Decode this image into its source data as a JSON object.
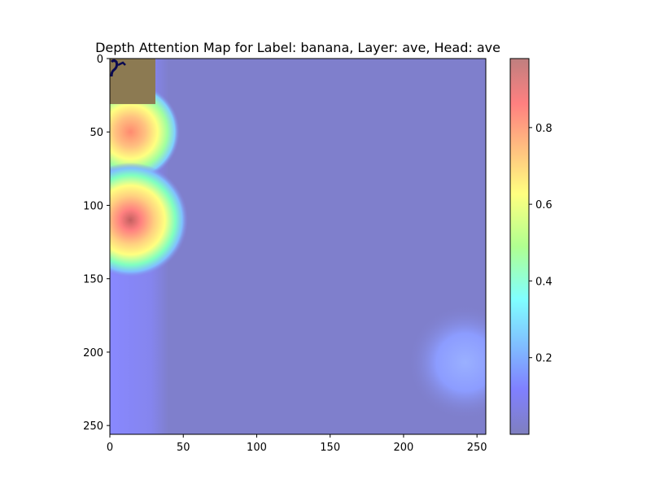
{
  "chart_data": {
    "type": "heatmap",
    "title": "Depth Attention Map for Label: banana, Layer: ave, Head: ave",
    "xlabel": "",
    "ylabel": "",
    "xlim": [
      0,
      256
    ],
    "ylim": [
      256,
      0
    ],
    "x_ticks": [
      0,
      50,
      100,
      150,
      200,
      250
    ],
    "y_ticks": [
      0,
      50,
      100,
      150,
      200,
      250
    ],
    "colorbar": {
      "range": [
        0.0,
        0.98
      ],
      "ticks": [
        0.2,
        0.4,
        0.6,
        0.8
      ],
      "tick_labels": [
        "0.2",
        "0.4",
        "0.6",
        "0.8"
      ],
      "colormap": "jet",
      "alpha": 0.5
    },
    "hotspots": [
      {
        "x": 14,
        "y": 50,
        "value": 0.82,
        "sigma": 12
      },
      {
        "x": 14,
        "y": 110,
        "value": 0.98,
        "sigma": 14
      },
      {
        "x": 242,
        "y": 207,
        "value": 0.22,
        "sigma": 14
      }
    ],
    "base_value": 0.05,
    "left_band": {
      "x_max": 40,
      "value": 0.12
    },
    "inset_image": {
      "x": [
        0,
        31
      ],
      "y": [
        0,
        31
      ],
      "color": "#8c7a52"
    },
    "grid": false
  },
  "colors": {
    "background": "#7f7fcc",
    "band": "#8585e8",
    "inset": "#8c7a52",
    "axis": "#000000"
  }
}
